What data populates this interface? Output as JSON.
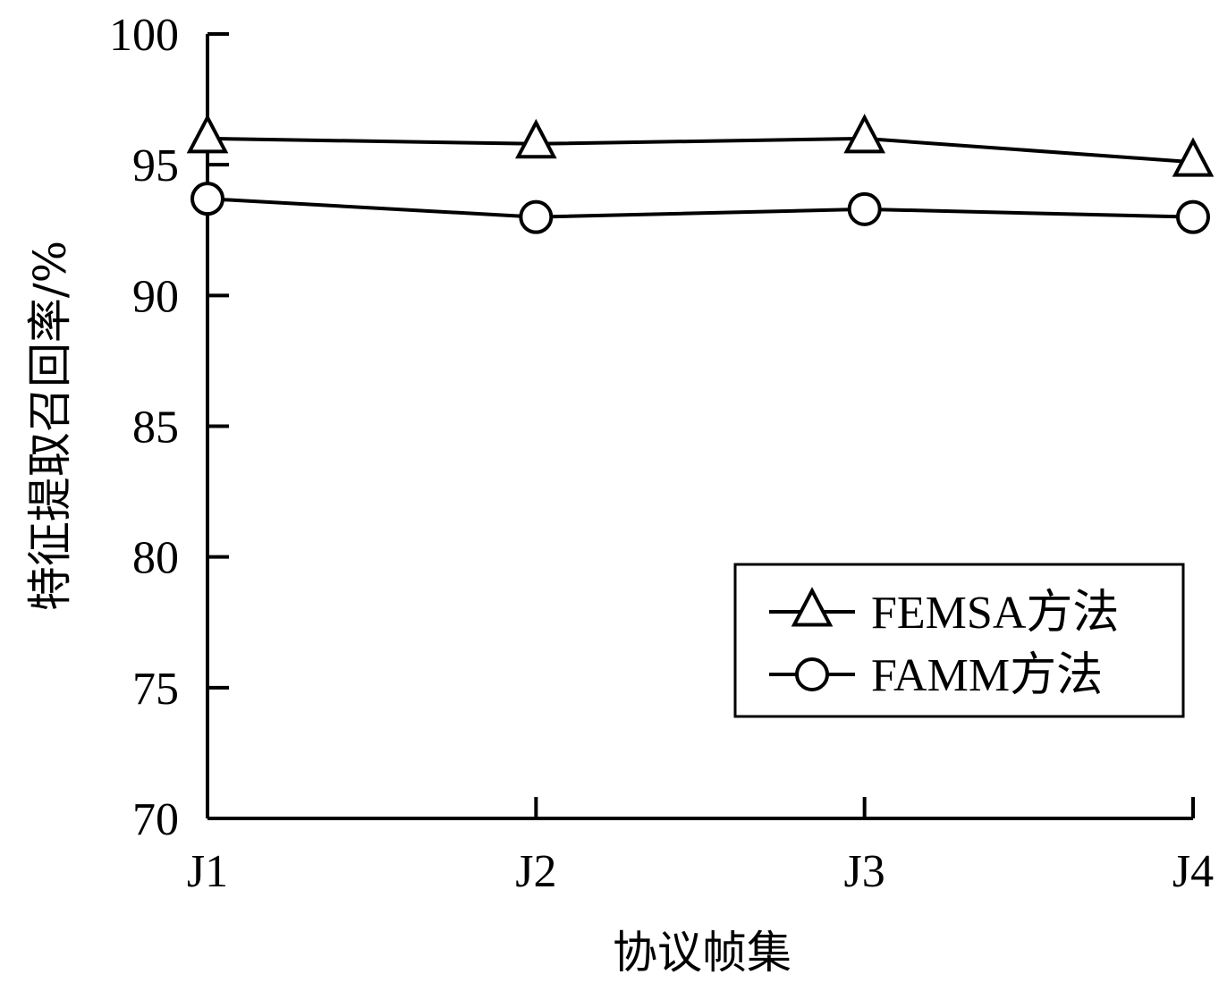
{
  "chart_data": {
    "type": "line",
    "title": "",
    "xlabel": "协议帧集",
    "ylabel": "特征提取召回率/%",
    "categories": [
      "J1",
      "J2",
      "J3",
      "J4"
    ],
    "ylim": [
      70,
      100
    ],
    "yticks": [
      70,
      75,
      80,
      85,
      90,
      95,
      100
    ],
    "grid": false,
    "legend_position": "bottom-right",
    "series": [
      {
        "name": "FEMSA方法",
        "marker": "triangle",
        "color": "#000000",
        "values": [
          96.0,
          95.8,
          96.0,
          95.1
        ]
      },
      {
        "name": "FAMM方法",
        "marker": "circle",
        "color": "#000000",
        "values": [
          93.7,
          93.0,
          93.3,
          93.0
        ]
      }
    ]
  }
}
